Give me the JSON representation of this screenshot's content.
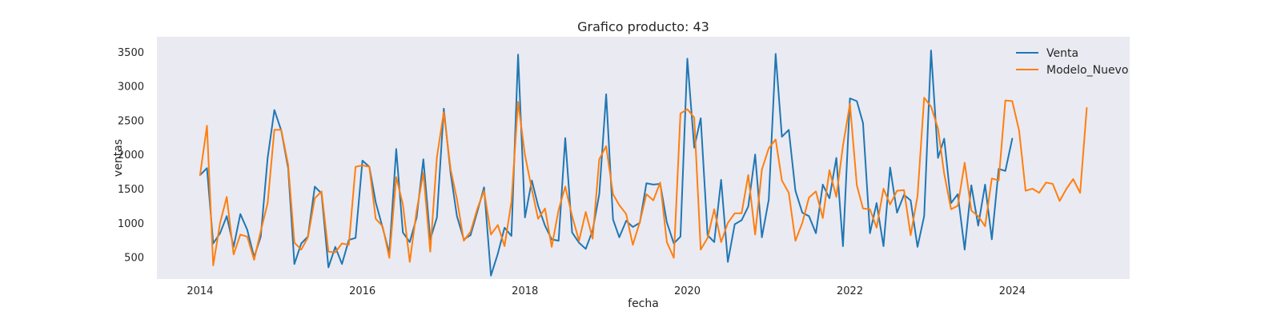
{
  "chart_data": {
    "type": "line",
    "title": "Grafico producto: 43",
    "xlabel": "fecha",
    "ylabel": "ventas",
    "x_axis": "date (monthly)",
    "xlim": [
      "2013-06-21",
      "2025-06-12"
    ],
    "ylim": [
      180,
      3720
    ],
    "x_ticks": [
      "2014",
      "2016",
      "2018",
      "2020",
      "2022",
      "2024"
    ],
    "y_ticks": [
      500,
      1000,
      1500,
      2000,
      2500,
      3000,
      3500
    ],
    "grid": false,
    "background": "#eaeaf2",
    "legend_position": "top-right",
    "series": [
      {
        "name": "Venta",
        "color": "#1f77b4",
        "start": "2014-01",
        "values": [
          1700,
          1800,
          700,
          850,
          1100,
          650,
          1130,
          900,
          500,
          800,
          1950,
          2650,
          2350,
          1800,
          400,
          700,
          800,
          1530,
          1430,
          350,
          650,
          400,
          750,
          780,
          1910,
          1820,
          1300,
          930,
          560,
          2080,
          860,
          720,
          1080,
          1930,
          760,
          1080,
          2670,
          1720,
          1100,
          760,
          820,
          1170,
          1520,
          230,
          550,
          930,
          810,
          3460,
          1080,
          1620,
          1250,
          960,
          760,
          740,
          2240,
          860,
          710,
          620,
          890,
          1420,
          2880,
          1050,
          790,
          1030,
          940,
          1000,
          1580,
          1560,
          1570,
          1010,
          700,
          800,
          3400,
          2100,
          2530,
          820,
          720,
          1630,
          430,
          980,
          1040,
          1240,
          2000,
          790,
          1340,
          3470,
          2260,
          2360,
          1470,
          1150,
          1100,
          850,
          1560,
          1360,
          1950,
          660,
          2820,
          2780,
          2460,
          850,
          1290,
          660,
          1810,
          1150,
          1410,
          1330,
          650,
          1100,
          3520,
          1950,
          2230,
          1290,
          1420,
          610,
          1550,
          960,
          1560,
          760,
          1790,
          1760,
          2230
        ]
      },
      {
        "name": "Modelo_Nuevo",
        "color": "#ff7f0e",
        "start": "2014-01",
        "values": [
          1700,
          2420,
          380,
          1000,
          1380,
          540,
          830,
          800,
          460,
          880,
          1290,
          2360,
          2360,
          1850,
          710,
          610,
          790,
          1360,
          1460,
          580,
          570,
          700,
          680,
          1820,
          1840,
          1820,
          1060,
          950,
          490,
          1670,
          1270,
          430,
          1180,
          1730,
          580,
          1960,
          2620,
          1780,
          1350,
          740,
          870,
          1210,
          1470,
          830,
          970,
          660,
          1310,
          2770,
          1990,
          1490,
          1060,
          1210,
          650,
          1190,
          1530,
          1100,
          740,
          1160,
          770,
          1930,
          2120,
          1420,
          1260,
          1130,
          680,
          1010,
          1420,
          1330,
          1590,
          720,
          490,
          2600,
          2660,
          2540,
          610,
          780,
          1200,
          720,
          1000,
          1140,
          1140,
          1700,
          830,
          1780,
          2090,
          2220,
          1620,
          1440,
          740,
          1000,
          1370,
          1460,
          1070,
          1770,
          1380,
          2130,
          2740,
          1550,
          1210,
          1200,
          930,
          1500,
          1270,
          1470,
          1480,
          820,
          1390,
          2830,
          2700,
          2380,
          1720,
          1200,
          1250,
          1880,
          1180,
          1100,
          950,
          1650,
          1620,
          2790,
          2780,
          2350,
          1470,
          1500,
          1440,
          1590,
          1570,
          1320,
          1500,
          1640,
          1440,
          2680
        ]
      }
    ]
  }
}
